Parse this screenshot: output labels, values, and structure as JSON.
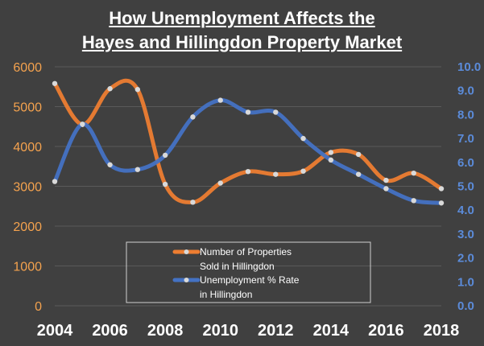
{
  "chart_data": {
    "type": "line",
    "title": [
      "How Unemployment Affects the",
      "Hayes and Hillingdon Property Market"
    ],
    "x": [
      2004,
      2005,
      2006,
      2007,
      2008,
      2009,
      2010,
      2011,
      2012,
      2013,
      2014,
      2015,
      2016,
      2017,
      2018
    ],
    "x_ticks": [
      "2004",
      "2006",
      "2008",
      "2010",
      "2012",
      "2014",
      "2016",
      "2018"
    ],
    "xlim": [
      2004,
      2018
    ],
    "series": [
      {
        "name": "Number of Properties Sold in Hillingdon",
        "legend_lines": [
          "Number of Properties",
          "Sold in Hillingdon"
        ],
        "axis": "left",
        "color": "#ED7D31",
        "values": [
          5580,
          4550,
          5450,
          5430,
          3050,
          2600,
          3080,
          3370,
          3300,
          3380,
          3850,
          3800,
          3150,
          3330,
          2940
        ]
      },
      {
        "name": "Unemployment % Rate in Hillingdon",
        "legend_lines": [
          "Unemployment % Rate",
          "in Hillingdon"
        ],
        "axis": "right",
        "color": "#4472C4",
        "values": [
          5.2,
          7.6,
          5.9,
          5.7,
          6.3,
          7.9,
          8.6,
          8.1,
          8.1,
          7.0,
          6.1,
          5.5,
          4.9,
          4.4,
          4.3
        ]
      }
    ],
    "y_left": {
      "ylim": [
        0,
        6000
      ],
      "ticks": [
        "0",
        "1000",
        "2000",
        "3000",
        "4000",
        "5000",
        "6000"
      ]
    },
    "y_right": {
      "ylim": [
        0,
        10
      ],
      "ticks": [
        "0.0",
        "1.0",
        "2.0",
        "3.0",
        "4.0",
        "5.0",
        "6.0",
        "7.0",
        "8.0",
        "9.0",
        "10.0"
      ]
    },
    "grid": true,
    "legend_position": "bottom-center"
  }
}
